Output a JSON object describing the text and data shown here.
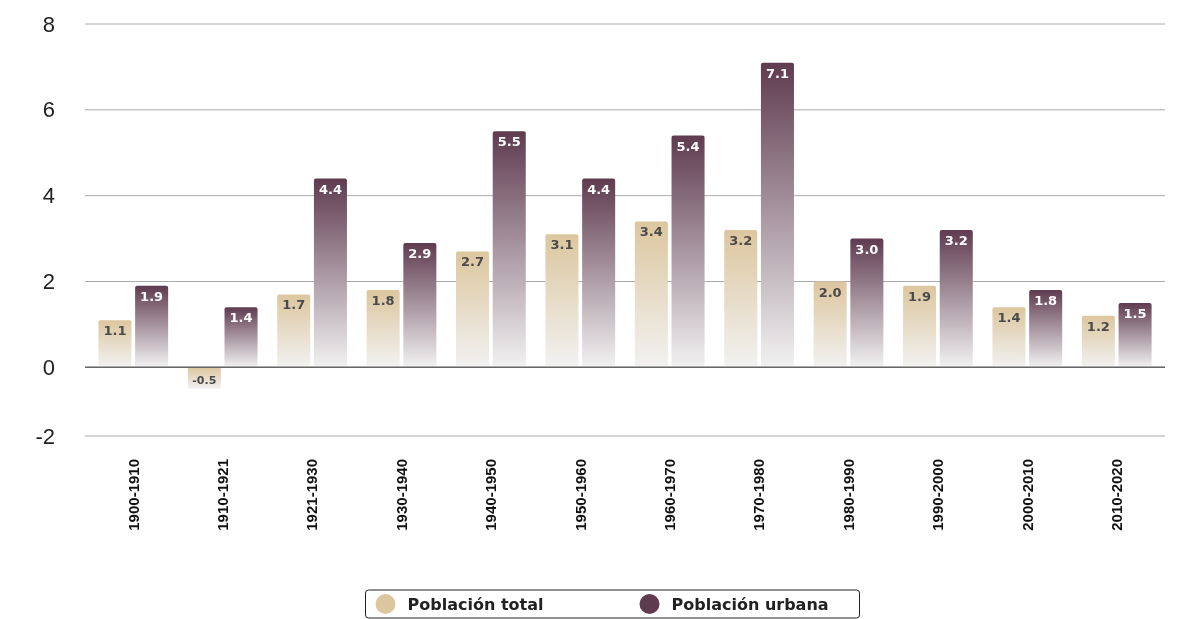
{
  "chart_data": {
    "type": "bar",
    "categories": [
      "1900-1910",
      "1910-1921",
      "1921-1930",
      "1930-1940",
      "1940-1950",
      "1950-1960",
      "1960-1970",
      "1970-1980",
      "1980-1990",
      "1990-2000",
      "2000-2010",
      "2010-2020"
    ],
    "series": [
      {
        "name": "Población total",
        "color": "#dcc69e",
        "values": [
          1.1,
          -0.5,
          1.7,
          1.8,
          2.7,
          3.1,
          3.4,
          3.2,
          2.0,
          1.9,
          1.4,
          1.2
        ],
        "value_labels": [
          "1.1",
          "-0.5",
          "1.7",
          "1.8",
          "2.7",
          "3.1",
          "3.4",
          "3.2",
          "2.0",
          "1.9",
          "1.4",
          "1.2"
        ]
      },
      {
        "name": "Población urbana",
        "color": "#5f3b50",
        "values": [
          1.9,
          1.4,
          4.4,
          2.9,
          5.5,
          4.4,
          5.4,
          7.1,
          3.0,
          3.2,
          1.8,
          1.5
        ],
        "value_labels": [
          "1.9",
          "1.4",
          "4.4",
          "2.9",
          "5.5",
          "4.4",
          "5.4",
          "7.1",
          "3.0",
          "3.2",
          "1.8",
          "1.5"
        ]
      }
    ],
    "ylim": [
      -1.6,
      8
    ],
    "yticks": [
      {
        "value": -1.6,
        "label": "-2"
      },
      0,
      2,
      4,
      6,
      8
    ],
    "grid": "y",
    "legend": "bottom"
  }
}
